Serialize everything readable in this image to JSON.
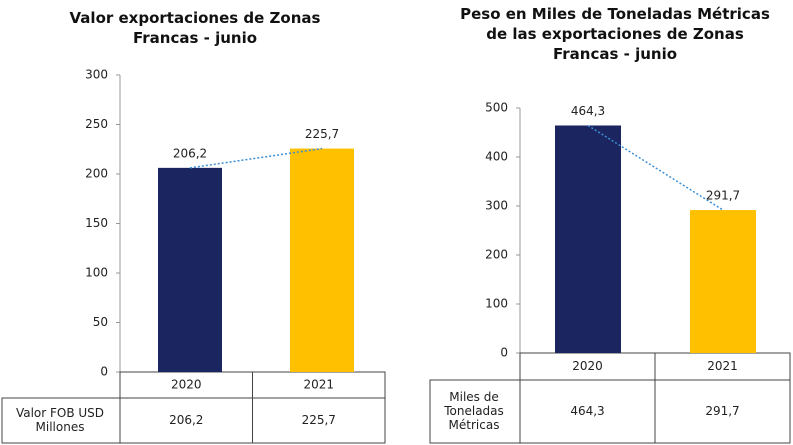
{
  "chart_data": [
    {
      "type": "bar",
      "title": "Valor exportaciones de Zonas Francas - junio",
      "categories": [
        "2020",
        "2021"
      ],
      "values": [
        206.2,
        225.7
      ],
      "value_labels": [
        "206,2",
        "225,7"
      ],
      "colors": [
        "#1b2660",
        "#ffc000"
      ],
      "trendline": true,
      "ylim": [
        0,
        300
      ],
      "yticks": [
        0,
        50,
        100,
        150,
        200,
        250,
        300
      ],
      "table_row_label": "Valor FOB USD Millones"
    },
    {
      "type": "bar",
      "title": "Peso en Miles de Toneladas Métricas de las exportaciones de Zonas Francas - junio",
      "categories": [
        "2020",
        "2021"
      ],
      "values": [
        464.3,
        291.7
      ],
      "value_labels": [
        "464,3",
        "291,7"
      ],
      "colors": [
        "#1b2660",
        "#ffc000"
      ],
      "trendline": true,
      "ylim": [
        0,
        500
      ],
      "yticks": [
        0,
        100,
        200,
        300,
        400,
        500
      ],
      "table_row_label": "Miles de Toneladas Métricas"
    }
  ]
}
